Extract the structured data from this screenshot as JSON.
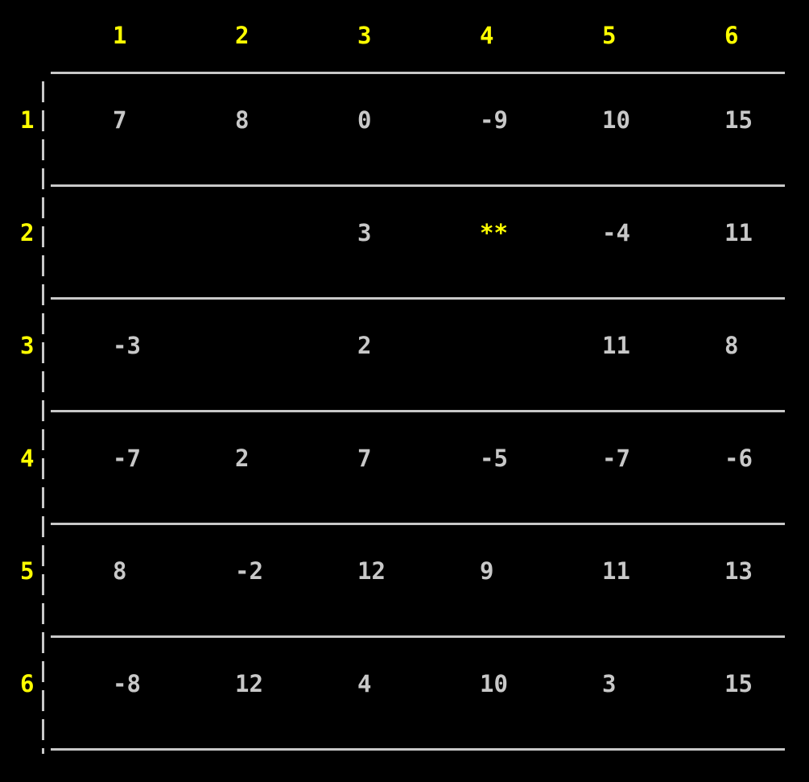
{
  "columns": [
    "1",
    "2",
    "3",
    "4",
    "5",
    "6"
  ],
  "rows": [
    {
      "label": "1",
      "cells": [
        "7",
        "8",
        "0",
        "-9",
        "10",
        "15"
      ]
    },
    {
      "label": "2",
      "cells": [
        "",
        "",
        "3",
        "**",
        "-4",
        "11"
      ]
    },
    {
      "label": "3",
      "cells": [
        "-3",
        "",
        "2",
        "",
        "11",
        "8"
      ]
    },
    {
      "label": "4",
      "cells": [
        "-7",
        "2",
        "7",
        "-5",
        "-7",
        "-6"
      ]
    },
    {
      "label": "5",
      "cells": [
        "8",
        "-2",
        "12",
        "9",
        "11",
        "13"
      ]
    },
    {
      "label": "6",
      "cells": [
        "-8",
        "12",
        "4",
        "10",
        "3",
        "15"
      ]
    }
  ],
  "marker_symbol": "**",
  "colors": {
    "background": "#000000",
    "header": "#ffff00",
    "cell_text": "#c8c8c8",
    "grid_line": "#c8c8c8",
    "marker": "#ffff00"
  }
}
